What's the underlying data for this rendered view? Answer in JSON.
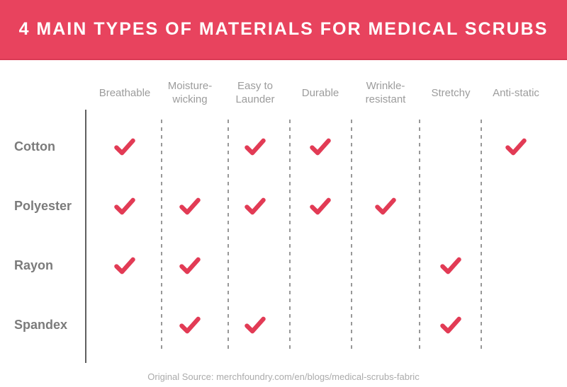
{
  "header": {
    "title": "4 MAIN TYPES OF MATERIALS FOR MEDICAL SCRUBS"
  },
  "chart_data": {
    "type": "table",
    "title": "4 MAIN TYPES OF MATERIALS FOR MEDICAL SCRUBS",
    "columns": [
      "Breathable",
      "Moisture-wicking",
      "Easy to Launder",
      "Durable",
      "Wrinkle-resistant",
      "Stretchy",
      "Anti-static"
    ],
    "rows": [
      "Cotton",
      "Polyester",
      "Rayon",
      "Spandex"
    ],
    "matrix": [
      [
        1,
        0,
        1,
        1,
        0,
        0,
        1
      ],
      [
        1,
        1,
        1,
        1,
        1,
        0,
        0
      ],
      [
        1,
        1,
        0,
        0,
        0,
        1,
        0
      ],
      [
        0,
        1,
        1,
        0,
        0,
        1,
        0
      ]
    ],
    "cell_true_symbol": "checkmark",
    "cell_false_symbol": "blank",
    "source": "Original Source: merchfoundry.com/en/blogs/medical-scrubs-fabric"
  },
  "footer": {
    "source_text": "Original Source: merchfoundry.com/en/blogs/medical-scrubs-fabric"
  },
  "colors": {
    "banner": "#E8435E",
    "banner_edge": "#D93A55",
    "check": "#E23B55",
    "label": "#7B7B7B",
    "header_text": "#9C9C9C",
    "line": "#606060",
    "dash": "#989898",
    "footer_text": "#ABABAB",
    "title_text": "#FFFFFF"
  }
}
